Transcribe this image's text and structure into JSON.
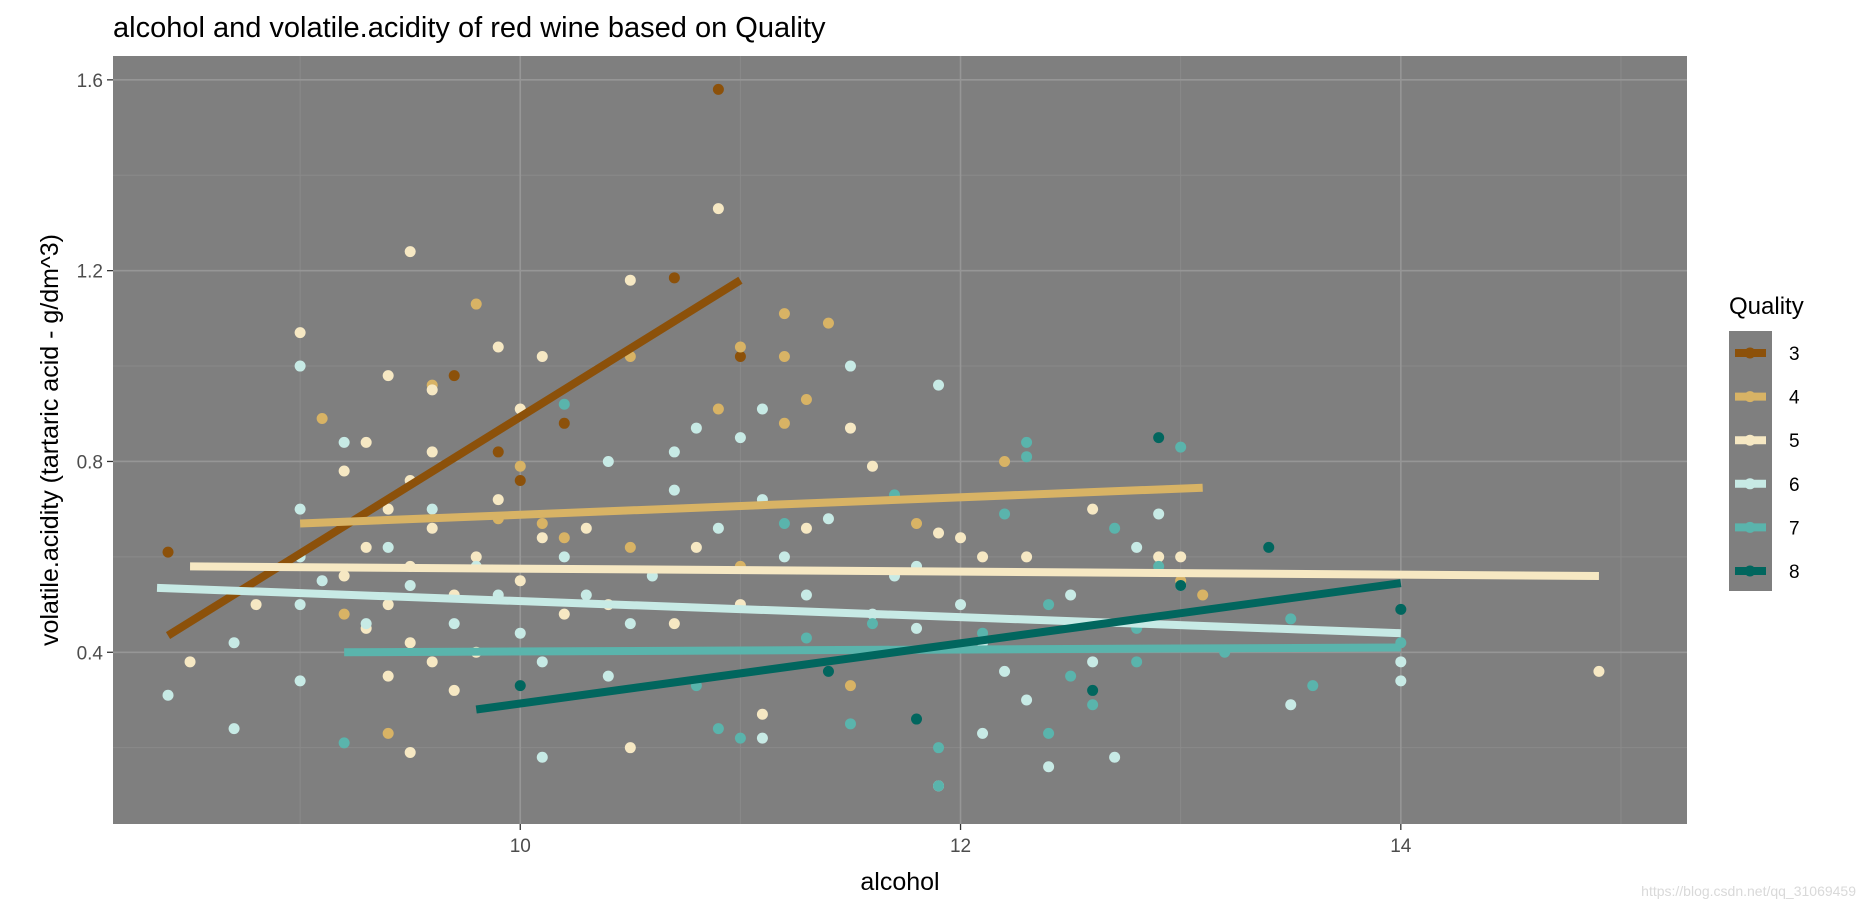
{
  "chart_data": {
    "type": "scatter",
    "title": "alcohol and volatile.acidity of red wine based on Quality",
    "xlabel": "alcohol",
    "ylabel": "volatile.acidity (tartaric acid - g/dm^3)",
    "xlim": [
      8.15,
      15.3
    ],
    "ylim": [
      0.04,
      1.65
    ],
    "xticks": [
      10,
      12,
      14
    ],
    "xtick_labels": [
      "10",
      "12",
      "14"
    ],
    "yticks": [
      0.4,
      0.8,
      1.2,
      1.6
    ],
    "ytick_labels": [
      "0.4",
      "0.8",
      "1.2",
      "1.6"
    ],
    "grid": true,
    "panel_background": "#7f7f7f",
    "legend": {
      "title": "Quality",
      "position": "right"
    },
    "series": [
      {
        "name": "3",
        "color": "#8c510a",
        "points": [
          [
            8.4,
            0.61
          ],
          [
            9.7,
            0.98
          ],
          [
            9.9,
            0.82
          ],
          [
            10,
            0.76
          ],
          [
            10.2,
            0.88
          ],
          [
            10.7,
            1.185
          ],
          [
            10.9,
            1.58
          ],
          [
            11,
            1.02
          ]
        ],
        "trend": [
          [
            8.4,
            0.435
          ],
          [
            11,
            1.18
          ]
        ]
      },
      {
        "name": "4",
        "color": "#d8b365",
        "points": [
          [
            9.1,
            0.89
          ],
          [
            9.2,
            0.48
          ],
          [
            9.4,
            0.23
          ],
          [
            9.6,
            0.96
          ],
          [
            9.8,
            1.13
          ],
          [
            10,
            0.79
          ],
          [
            10.1,
            0.67
          ],
          [
            10.5,
            0.62
          ],
          [
            10.5,
            1.02
          ],
          [
            10.9,
            0.91
          ],
          [
            11,
            1.04
          ],
          [
            11,
            0.58
          ],
          [
            11.2,
            1.11
          ],
          [
            11.2,
            1.02
          ],
          [
            11.2,
            0.88
          ],
          [
            11.3,
            0.93
          ],
          [
            11.4,
            1.09
          ],
          [
            11.5,
            0.33
          ],
          [
            11.8,
            0.67
          ],
          [
            12.2,
            0.8
          ],
          [
            13,
            0.55
          ],
          [
            13.1,
            0.52
          ],
          [
            10.2,
            0.64
          ],
          [
            9.9,
            0.68
          ]
        ],
        "trend": [
          [
            9,
            0.67
          ],
          [
            13.1,
            0.745
          ]
        ]
      },
      {
        "name": "5",
        "color": "#f6e8c3",
        "points": [
          [
            8.5,
            0.38
          ],
          [
            8.8,
            0.5
          ],
          [
            9,
            1.07
          ],
          [
            9.5,
            1.24
          ],
          [
            9.4,
            0.98
          ],
          [
            9.6,
            0.95
          ],
          [
            9.2,
            0.56
          ],
          [
            9.3,
            0.62
          ],
          [
            9.4,
            0.7
          ],
          [
            9.5,
            0.58
          ],
          [
            9.6,
            0.66
          ],
          [
            9.7,
            0.52
          ],
          [
            9.8,
            0.6
          ],
          [
            9.9,
            0.72
          ],
          [
            10,
            0.55
          ],
          [
            10.1,
            0.64
          ],
          [
            10.2,
            0.48
          ],
          [
            10.3,
            0.66
          ],
          [
            10.4,
            0.5
          ],
          [
            10.5,
            1.18
          ],
          [
            10.6,
            0.57
          ],
          [
            10.7,
            0.46
          ],
          [
            10.8,
            0.62
          ],
          [
            10.9,
            1.33
          ],
          [
            11,
            0.5
          ],
          [
            11.1,
            0.27
          ],
          [
            11.3,
            0.66
          ],
          [
            11.5,
            0.87
          ],
          [
            11.6,
            0.79
          ],
          [
            11.9,
            0.65
          ],
          [
            12,
            0.64
          ],
          [
            12.1,
            0.6
          ],
          [
            12.3,
            0.6
          ],
          [
            12.6,
            0.7
          ],
          [
            12.9,
            0.6
          ],
          [
            13,
            0.6
          ],
          [
            14.9,
            0.36
          ],
          [
            9.3,
            0.45
          ],
          [
            9.4,
            0.35
          ],
          [
            9.5,
            0.42
          ],
          [
            9.6,
            0.38
          ],
          [
            9.7,
            0.32
          ],
          [
            9.8,
            0.4
          ],
          [
            10,
            0.91
          ],
          [
            9.2,
            0.78
          ],
          [
            9.3,
            0.84
          ],
          [
            9.4,
            0.5
          ],
          [
            9.5,
            0.76
          ],
          [
            9.6,
            0.82
          ],
          [
            10.1,
            1.02
          ],
          [
            9.9,
            1.04
          ],
          [
            9.5,
            0.19
          ],
          [
            10.5,
            0.2
          ]
        ],
        "trend": [
          [
            8.5,
            0.58
          ],
          [
            14.9,
            0.56
          ]
        ]
      },
      {
        "name": "6",
        "color": "#c7eae5",
        "points": [
          [
            8.4,
            0.31
          ],
          [
            8.7,
            0.42
          ],
          [
            8.7,
            0.24
          ],
          [
            9,
            1.0
          ],
          [
            9,
            0.7
          ],
          [
            9,
            0.6
          ],
          [
            9,
            0.5
          ],
          [
            9,
            0.34
          ],
          [
            9.1,
            0.55
          ],
          [
            9.2,
            0.84
          ],
          [
            9.3,
            0.46
          ],
          [
            9.4,
            0.62
          ],
          [
            9.5,
            0.54
          ],
          [
            9.6,
            0.7
          ],
          [
            9.7,
            0.46
          ],
          [
            9.8,
            0.58
          ],
          [
            9.9,
            0.52
          ],
          [
            10,
            0.44
          ],
          [
            10.1,
            0.38
          ],
          [
            10.2,
            0.6
          ],
          [
            10.3,
            0.52
          ],
          [
            10.4,
            0.35
          ],
          [
            10.5,
            0.46
          ],
          [
            10.6,
            0.56
          ],
          [
            10.7,
            0.74
          ],
          [
            10.8,
            0.87
          ],
          [
            10.9,
            0.66
          ],
          [
            11,
            0.85
          ],
          [
            11.1,
            0.72
          ],
          [
            11.2,
            0.6
          ],
          [
            11.3,
            0.52
          ],
          [
            11.4,
            0.68
          ],
          [
            11.5,
            1.0
          ],
          [
            11.6,
            0.48
          ],
          [
            11.7,
            0.56
          ],
          [
            11.8,
            0.45
          ],
          [
            11.9,
            0.96
          ],
          [
            12,
            0.5
          ],
          [
            12.1,
            0.42
          ],
          [
            12.2,
            0.36
          ],
          [
            12.3,
            0.3
          ],
          [
            12.4,
            0.16
          ],
          [
            12.5,
            0.52
          ],
          [
            12.6,
            0.38
          ],
          [
            12.7,
            0.18
          ],
          [
            12.8,
            0.62
          ],
          [
            12.9,
            0.69
          ],
          [
            13,
            0.54
          ],
          [
            13.5,
            0.29
          ],
          [
            14,
            0.34
          ],
          [
            14,
            0.38
          ],
          [
            11.9,
            0.12
          ],
          [
            12.1,
            0.23
          ],
          [
            11.1,
            0.22
          ],
          [
            10.4,
            0.8
          ],
          [
            10.1,
            0.18
          ],
          [
            10.7,
            0.82
          ],
          [
            11.1,
            0.91
          ],
          [
            11.8,
            0.58
          ]
        ],
        "trend": [
          [
            8.35,
            0.535
          ],
          [
            14,
            0.44
          ]
        ]
      },
      {
        "name": "7",
        "color": "#5ab4ac",
        "points": [
          [
            9.2,
            0.21
          ],
          [
            10.2,
            0.92
          ],
          [
            10.9,
            0.24
          ],
          [
            11,
            0.22
          ],
          [
            11.2,
            0.67
          ],
          [
            11.6,
            0.46
          ],
          [
            11.7,
            0.73
          ],
          [
            11.9,
            0.2
          ],
          [
            12.1,
            0.44
          ],
          [
            12.2,
            0.69
          ],
          [
            12.3,
            0.84
          ],
          [
            12.3,
            0.81
          ],
          [
            12.4,
            0.5
          ],
          [
            12.5,
            0.35
          ],
          [
            12.6,
            0.29
          ],
          [
            12.7,
            0.66
          ],
          [
            12.8,
            0.38
          ],
          [
            12.9,
            0.58
          ],
          [
            13,
            0.83
          ],
          [
            13.2,
            0.4
          ],
          [
            13.5,
            0.47
          ],
          [
            13.6,
            0.33
          ],
          [
            14,
            0.42
          ],
          [
            11.9,
            0.12
          ],
          [
            11.5,
            0.25
          ],
          [
            12.4,
            0.23
          ],
          [
            10.8,
            0.33
          ],
          [
            11.3,
            0.43
          ],
          [
            12.8,
            0.45
          ]
        ],
        "trend": [
          [
            9.2,
            0.4
          ],
          [
            14,
            0.41
          ]
        ]
      },
      {
        "name": "8",
        "color": "#01665e",
        "points": [
          [
            10,
            0.33
          ],
          [
            11.4,
            0.36
          ],
          [
            11.8,
            0.26
          ],
          [
            12.6,
            0.32
          ],
          [
            12.9,
            0.85
          ],
          [
            13,
            0.54
          ],
          [
            13.4,
            0.62
          ],
          [
            14,
            0.49
          ]
        ],
        "trend": [
          [
            9.8,
            0.28
          ],
          [
            14,
            0.545
          ]
        ]
      }
    ]
  },
  "watermark": "https://blog.csdn.net/qq_31069459"
}
